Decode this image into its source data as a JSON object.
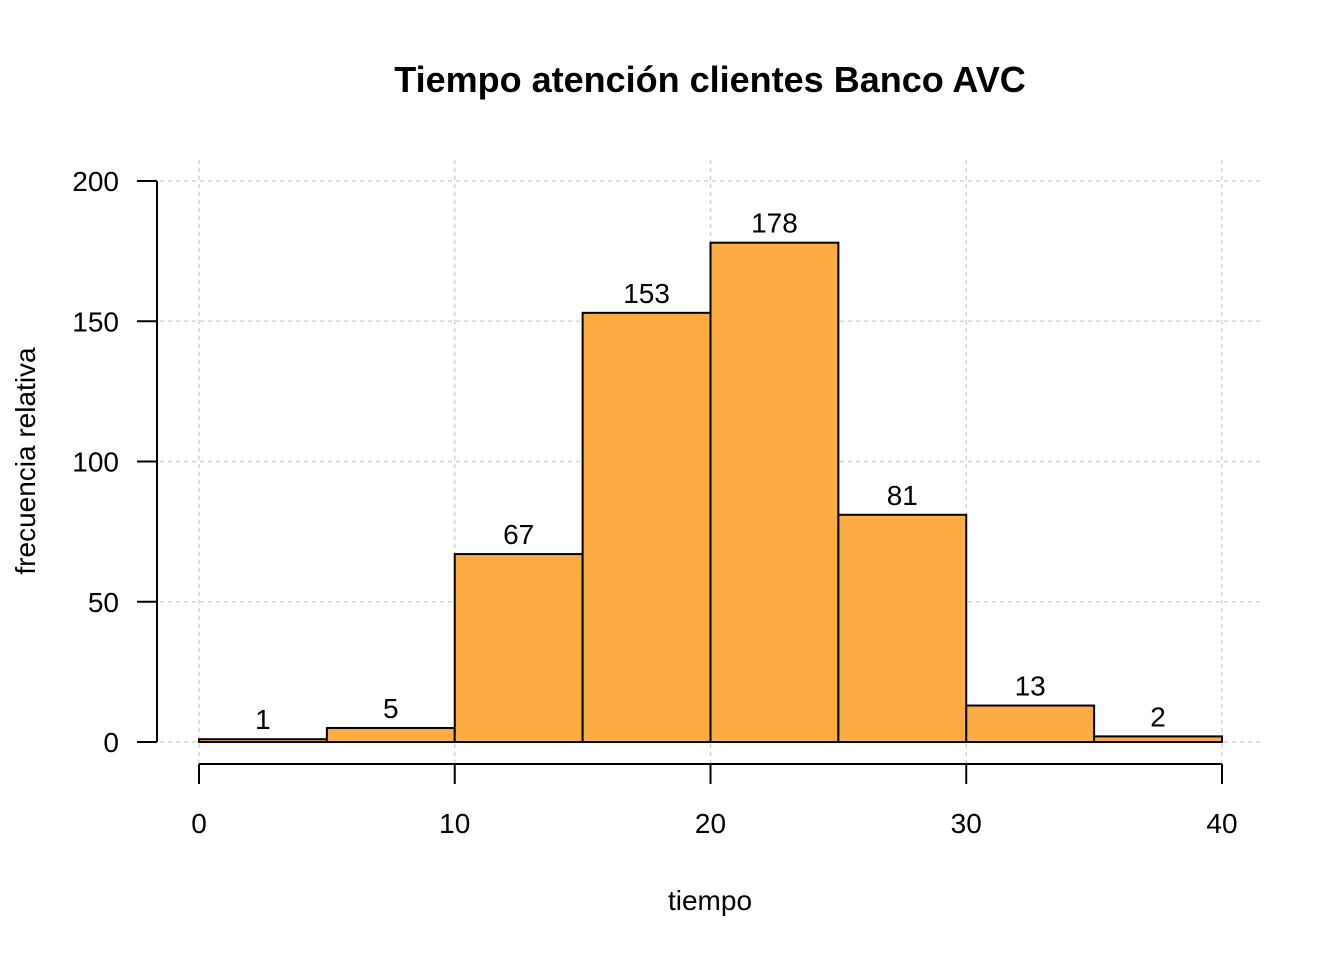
{
  "chart_data": {
    "type": "bar",
    "title": "Tiempo atención clientes Banco AVC",
    "xlabel": "tiempo",
    "ylabel": "frecuencia relativa",
    "bin_edges": [
      0,
      5,
      10,
      15,
      20,
      25,
      30,
      35,
      40
    ],
    "values": [
      1,
      5,
      67,
      153,
      178,
      81,
      13,
      2
    ],
    "data_labels": [
      "1",
      "5",
      "67",
      "153",
      "178",
      "81",
      "13",
      "2"
    ],
    "xlim": [
      0,
      40
    ],
    "ylim": [
      0,
      200
    ],
    "x_ticks": [
      0,
      10,
      20,
      30,
      40
    ],
    "x_tick_labels": [
      "0",
      "10",
      "20",
      "30",
      "40"
    ],
    "y_ticks": [
      0,
      50,
      100,
      150,
      200
    ],
    "y_tick_labels": [
      "0",
      "50",
      "100",
      "150",
      "200"
    ],
    "grid": true,
    "bar_color": "#FDAC44",
    "grid_color": "#d3d3d3"
  }
}
